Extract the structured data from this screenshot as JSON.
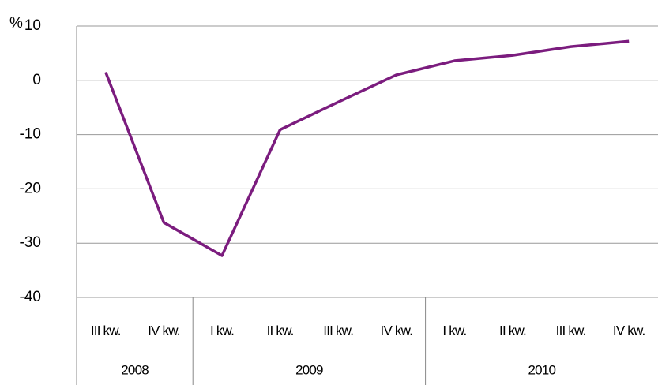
{
  "chart_data": {
    "type": "line",
    "y_unit_label": "%",
    "groups": [
      {
        "name": "2008",
        "categories": [
          "III kw.",
          "IV kw."
        ]
      },
      {
        "name": "2009",
        "categories": [
          "I kw.",
          "II kw.",
          "III kw.",
          "IV kw."
        ]
      },
      {
        "name": "2010",
        "categories": [
          "I kw.",
          "II kw.",
          "III kw.",
          "IV kw."
        ]
      }
    ],
    "series": [
      {
        "name": null,
        "color": "#7b1c7e",
        "values": [
          1.5,
          -26.2,
          -32.3,
          -9.1,
          -4.0,
          1.0,
          3.6,
          4.6,
          6.2,
          7.2
        ]
      }
    ],
    "ylim": [
      -40,
      10
    ],
    "yticks": [
      -40,
      -30,
      -20,
      -10,
      0,
      10
    ],
    "grid": true
  }
}
